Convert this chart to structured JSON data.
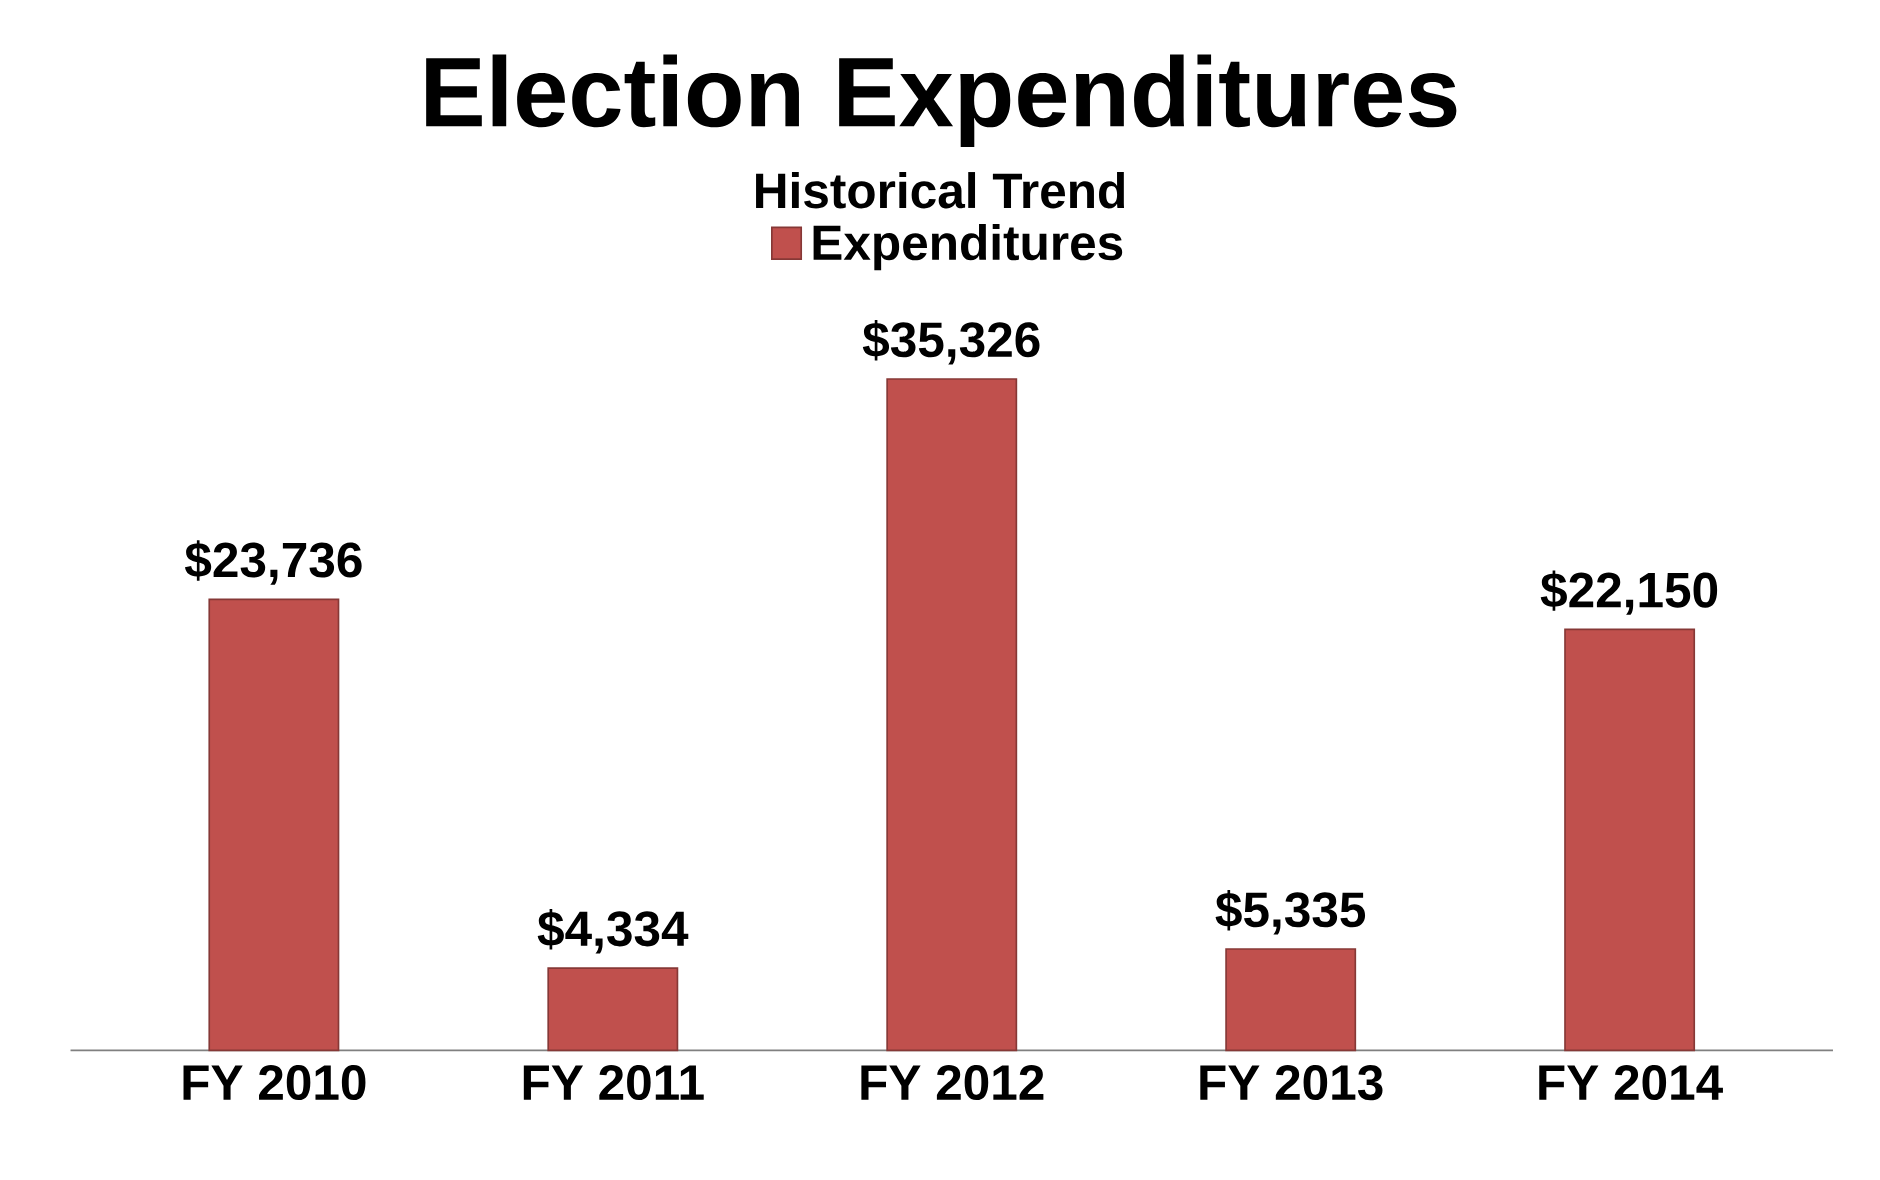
{
  "chart_data": {
    "type": "bar",
    "title": "Election Expenditures",
    "subtitle": "Historical Trend",
    "categories": [
      "FY 2010",
      "FY 2011",
      "FY 2012",
      "FY 2013",
      "FY 2014"
    ],
    "series": [
      {
        "name": "Expenditures",
        "color": "#c0504d",
        "values": [
          23736,
          4334,
          35326,
          5335,
          22150
        ],
        "value_labels": [
          "$23,736",
          "$4,334",
          "$35,326",
          "$5,335",
          "$22,150"
        ]
      }
    ],
    "legend": "top"
  }
}
